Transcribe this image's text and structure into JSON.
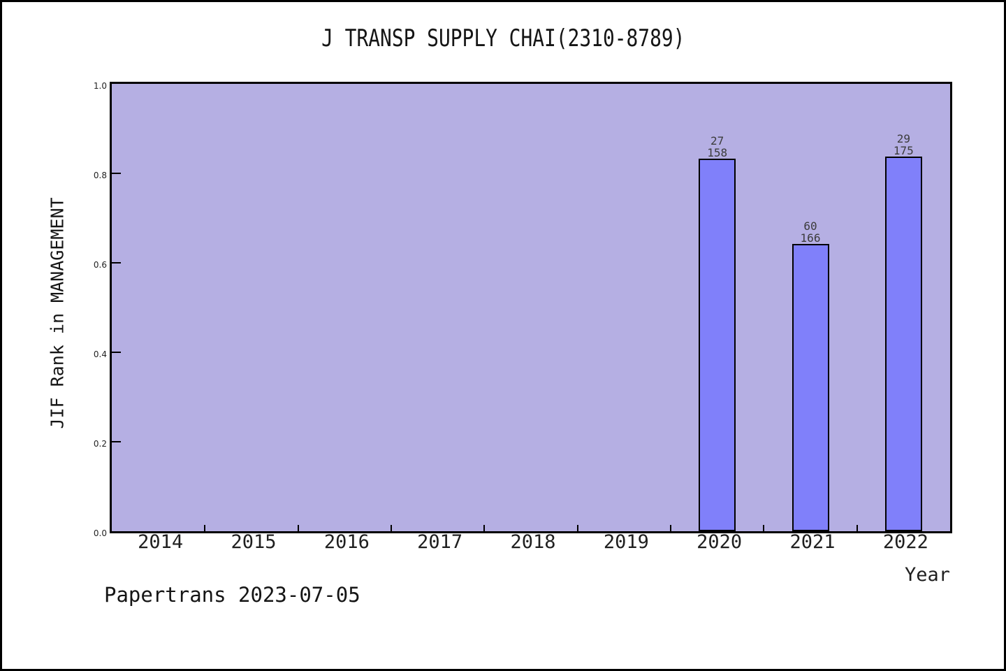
{
  "page": {
    "background": "#ffffff",
    "border_color": "#000000"
  },
  "chart_data": {
    "type": "bar",
    "title": "J TRANSP SUPPLY CHAI(2310-8789)",
    "xlabel": "Year",
    "ylabel": "JIF Rank in MANAGEMENT",
    "categories": [
      "2014",
      "2015",
      "2016",
      "2017",
      "2018",
      "2019",
      "2020",
      "2021",
      "2022"
    ],
    "bars": [
      {
        "category": "2020",
        "rank": "27",
        "total": "158",
        "value": 0.8291
      },
      {
        "category": "2021",
        "rank": "60",
        "total": "166",
        "value": 0.6386
      },
      {
        "category": "2022",
        "rank": "29",
        "total": "175",
        "value": 0.8343
      }
    ],
    "ylim": [
      0,
      1
    ],
    "yticks": [
      "0.0",
      "0.2",
      "0.4",
      "0.6",
      "0.8",
      "1.0"
    ],
    "grid": false,
    "legend": null,
    "colors": {
      "plot_background": "#b5afe3",
      "bar_fill": "#8080fa",
      "bar_edge": "#000000",
      "axis": "#000000"
    }
  },
  "footer": {
    "label": "Papertrans 2023-07-05"
  }
}
